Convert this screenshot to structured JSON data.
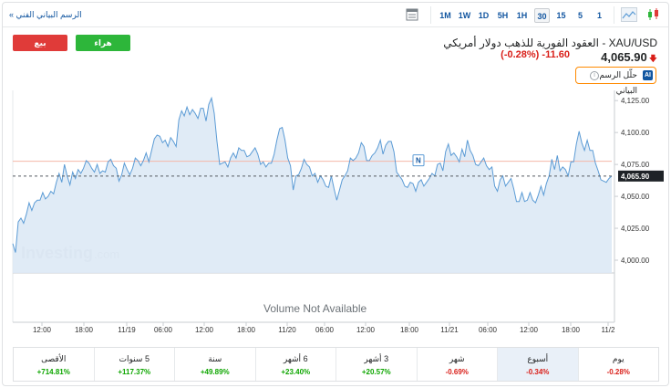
{
  "toolbar": {
    "fullchart_link": "الرسم البياني الفني »",
    "timeframes": [
      "1M",
      "1W",
      "1D",
      "5H",
      "1H",
      "30",
      "15",
      "5",
      "1"
    ],
    "active_timeframe": "30"
  },
  "trade": {
    "sell_label": "بيع",
    "buy_label": "هراء",
    "sell_color": "#e03b39",
    "buy_color": "#2db63a"
  },
  "instrument": {
    "name": "XAU/USD - العقود الفورية للذهب دولار أمريكي",
    "price": "4,065.90",
    "change": "-11.60",
    "change_pct": "(-0.28%)",
    "analyze_label": "حلّل الرسم البياني",
    "ai_badge": "AI"
  },
  "chart": {
    "watermark_brand": "Investing",
    "watermark_suffix": ".com",
    "volume_note": "Volume Not Available",
    "news_marker": "N",
    "current_price_label": "4,065.90",
    "line_color": "#5b9bd5",
    "area_color": "#dde9f5",
    "prev_close_color": "#f5b7a8"
  },
  "chart_data": {
    "type": "area",
    "ylim": [
      3990,
      4133
    ],
    "yticks": [
      "4,125.00",
      "4,100.00",
      "4,075.00",
      "4,050.00",
      "4,025.00",
      "4,000.00"
    ],
    "ytick_values": [
      4125,
      4100,
      4075,
      4050,
      4025,
      4000
    ],
    "xticks": [
      "12:00",
      "18:00",
      "11/19",
      "06:00",
      "12:00",
      "18:00",
      "11/20",
      "06:00",
      "12:00",
      "18:00",
      "11/21",
      "06:00",
      "12:00",
      "18:00",
      "11/2"
    ],
    "previous_close": 4077.5,
    "last_price": 4065.9,
    "values": [
      4013,
      4006,
      4030,
      4033,
      4029,
      4036,
      4045,
      4039,
      4045,
      4047,
      4047,
      4053,
      4048,
      4050,
      4054,
      4052,
      4061,
      4068,
      4061,
      4075,
      4066,
      4059,
      4069,
      4064,
      4071,
      4068,
      4072,
      4078,
      4076,
      4072,
      4069,
      4075,
      4068,
      4070,
      4069,
      4077,
      4079,
      4074,
      4072,
      4062,
      4067,
      4076,
      4071,
      4067,
      4072,
      4080,
      4078,
      4074,
      4078,
      4084,
      4077,
      4086,
      4095,
      4098,
      4097,
      4092,
      4094,
      4089,
      4096,
      4093,
      4089,
      4110,
      4117,
      4113,
      4120,
      4114,
      4118,
      4115,
      4111,
      4119,
      4119,
      4109,
      4122,
      4127,
      4115,
      4093,
      4075,
      4076,
      4077,
      4073,
      4080,
      4084,
      4080,
      4088,
      4086,
      4086,
      4081,
      4082,
      4085,
      4088,
      4083,
      4075,
      4077,
      4073,
      4076,
      4076,
      4083,
      4094,
      4103,
      4104,
      4094,
      4080,
      4074,
      4055,
      4066,
      4067,
      4072,
      4079,
      4075,
      4073,
      4066,
      4068,
      4061,
      4066,
      4063,
      4058,
      4057,
      4066,
      4056,
      4047,
      4055,
      4063,
      4066,
      4070,
      4080,
      4078,
      4080,
      4084,
      4092,
      4089,
      4078,
      4078,
      4082,
      4084,
      4088,
      4094,
      4083,
      4090,
      4093,
      4093,
      4085,
      4069,
      4066,
      4063,
      4058,
      4057,
      4061,
      4060,
      4054,
      4061,
      4063,
      4058,
      4061,
      4064,
      4068,
      4066,
      4075,
      4076,
      4070,
      4085,
      4091,
      4082,
      4084,
      4081,
      4077,
      4087,
      4081,
      4094,
      4086,
      4082,
      4075,
      4074,
      4077,
      4080,
      4074,
      4071,
      4073,
      4058,
      4054,
      4063,
      4066,
      4058,
      4061,
      4064,
      4056,
      4046,
      4046,
      4053,
      4046,
      4047,
      4053,
      4047,
      4045,
      4051,
      4058,
      4051,
      4060,
      4066,
      4079,
      4071,
      4082,
      4070,
      4073,
      4071,
      4066,
      4077,
      4077,
      4091,
      4101,
      4092,
      4086,
      4094,
      4086,
      4086,
      4076,
      4070,
      4063,
      4062,
      4061,
      4064,
      4066
    ]
  },
  "periods": [
    {
      "label": "الأقصى",
      "value": "+714.81%",
      "sign": "pos"
    },
    {
      "label": "5 سنوات",
      "value": "+117.37%",
      "sign": "pos"
    },
    {
      "label": "سنة",
      "value": "+49.89%",
      "sign": "pos"
    },
    {
      "label": "6 أشهر",
      "value": "+23.40%",
      "sign": "pos"
    },
    {
      "label": "3 أشهر",
      "value": "+20.57%",
      "sign": "pos"
    },
    {
      "label": "شهر",
      "value": "-0.69%",
      "sign": "neg"
    },
    {
      "label": "أسبوع",
      "value": "-0.34%",
      "sign": "neg",
      "selected": true
    },
    {
      "label": "يوم",
      "value": "-0.28%",
      "sign": "neg"
    }
  ]
}
